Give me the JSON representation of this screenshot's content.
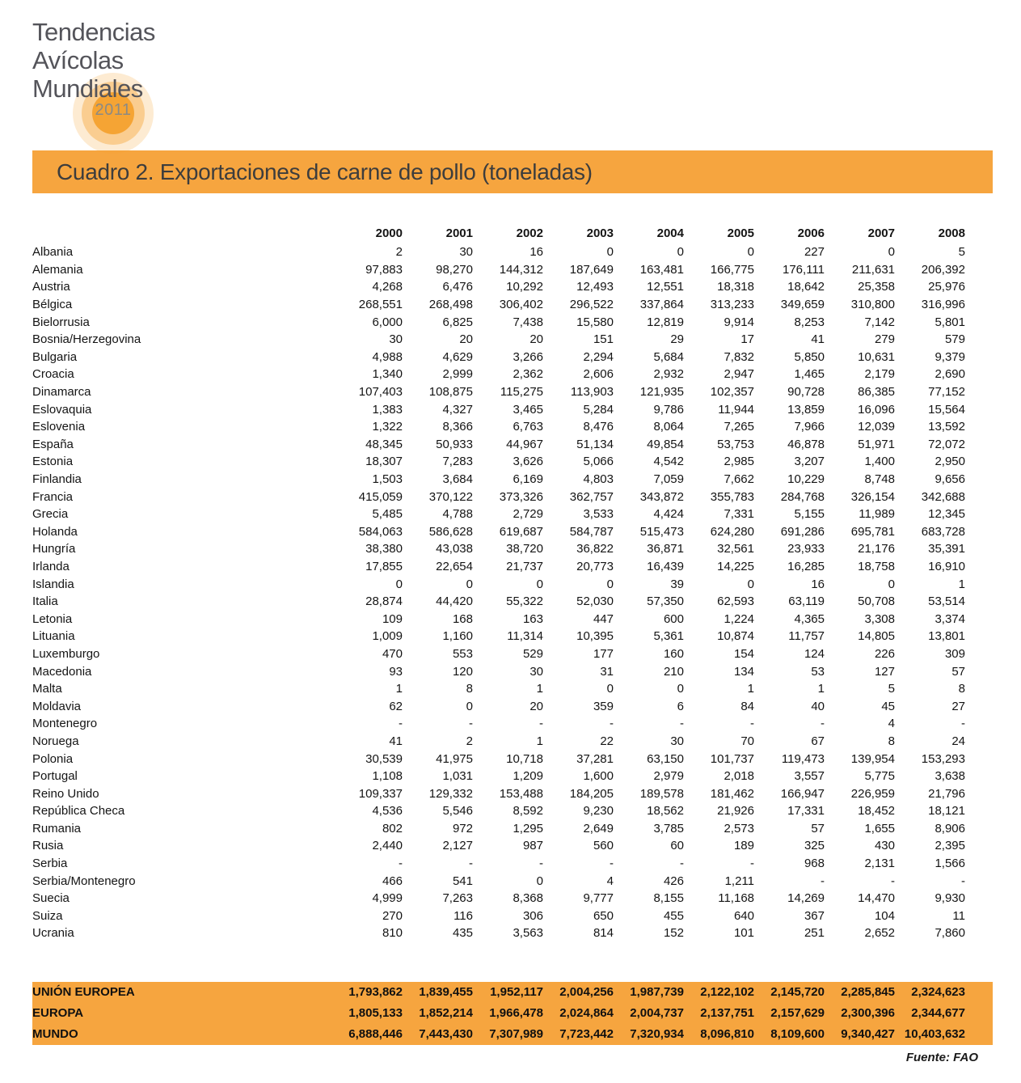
{
  "logo": {
    "lines": [
      "Tendencias",
      "Avícolas",
      "Mundiales"
    ],
    "badge_year": "2011"
  },
  "header": {
    "title": "Cuadro 2. Exportaciones de carne de pollo (toneladas)"
  },
  "footer": {
    "source": "Fuente: FAO"
  },
  "colors": {
    "accent_orange": "#F6A53F",
    "badge_inner_orange": "#F5A434",
    "logo_text_gray": "#54545A",
    "title_text_gray": "#3D3D3D"
  },
  "chart_data": {
    "type": "table",
    "title": "Cuadro 2. Exportaciones de carne de pollo (toneladas)",
    "unit": "toneladas",
    "columns": [
      "2000",
      "2001",
      "2002",
      "2003",
      "2004",
      "2005",
      "2006",
      "2007",
      "2008"
    ],
    "rows": [
      {
        "label": "Albania",
        "values": [
          "2",
          "30",
          "16",
          "0",
          "0",
          "0",
          "227",
          "0",
          "5"
        ]
      },
      {
        "label": "Alemania",
        "values": [
          "97,883",
          "98,270",
          "144,312",
          "187,649",
          "163,481",
          "166,775",
          "176,111",
          "211,631",
          "206,392"
        ]
      },
      {
        "label": "Austria",
        "values": [
          "4,268",
          "6,476",
          "10,292",
          "12,493",
          "12,551",
          "18,318",
          "18,642",
          "25,358",
          "25,976"
        ]
      },
      {
        "label": "Bélgica",
        "values": [
          "268,551",
          "268,498",
          "306,402",
          "296,522",
          "337,864",
          "313,233",
          "349,659",
          "310,800",
          "316,996"
        ]
      },
      {
        "label": "Bielorrusia",
        "values": [
          "6,000",
          "6,825",
          "7,438",
          "15,580",
          "12,819",
          "9,914",
          "8,253",
          "7,142",
          "5,801"
        ]
      },
      {
        "label": "Bosnia/Herzegovina",
        "values": [
          "30",
          "20",
          "20",
          "151",
          "29",
          "17",
          "41",
          "279",
          "579"
        ]
      },
      {
        "label": "Bulgaria",
        "values": [
          "4,988",
          "4,629",
          "3,266",
          "2,294",
          "5,684",
          "7,832",
          "5,850",
          "10,631",
          "9,379"
        ]
      },
      {
        "label": "Croacia",
        "values": [
          "1,340",
          "2,999",
          "2,362",
          "2,606",
          "2,932",
          "2,947",
          "1,465",
          "2,179",
          "2,690"
        ]
      },
      {
        "label": "Dinamarca",
        "values": [
          "107,403",
          "108,875",
          "115,275",
          "113,903",
          "121,935",
          "102,357",
          "90,728",
          "86,385",
          "77,152"
        ]
      },
      {
        "label": "Eslovaquia",
        "values": [
          "1,383",
          "4,327",
          "3,465",
          "5,284",
          "9,786",
          "11,944",
          "13,859",
          "16,096",
          "15,564"
        ]
      },
      {
        "label": "Eslovenia",
        "values": [
          "1,322",
          "8,366",
          "6,763",
          "8,476",
          "8,064",
          "7,265",
          "7,966",
          "12,039",
          "13,592"
        ]
      },
      {
        "label": "España",
        "values": [
          "48,345",
          "50,933",
          "44,967",
          "51,134",
          "49,854",
          "53,753",
          "46,878",
          "51,971",
          "72,072"
        ]
      },
      {
        "label": "Estonia",
        "values": [
          "18,307",
          "7,283",
          "3,626",
          "5,066",
          "4,542",
          "2,985",
          "3,207",
          "1,400",
          "2,950"
        ]
      },
      {
        "label": "Finlandia",
        "values": [
          "1,503",
          "3,684",
          "6,169",
          "4,803",
          "7,059",
          "7,662",
          "10,229",
          "8,748",
          "9,656"
        ]
      },
      {
        "label": "Francia",
        "values": [
          "415,059",
          "370,122",
          "373,326",
          "362,757",
          "343,872",
          "355,783",
          "284,768",
          "326,154",
          "342,688"
        ]
      },
      {
        "label": "Grecia",
        "values": [
          "5,485",
          "4,788",
          "2,729",
          "3,533",
          "4,424",
          "7,331",
          "5,155",
          "11,989",
          "12,345"
        ]
      },
      {
        "label": "Holanda",
        "values": [
          "584,063",
          "586,628",
          "619,687",
          "584,787",
          "515,473",
          "624,280",
          "691,286",
          "695,781",
          "683,728"
        ]
      },
      {
        "label": "Hungría",
        "values": [
          "38,380",
          "43,038",
          "38,720",
          "36,822",
          "36,871",
          "32,561",
          "23,933",
          "21,176",
          "35,391"
        ]
      },
      {
        "label": "Irlanda",
        "values": [
          "17,855",
          "22,654",
          "21,737",
          "20,773",
          "16,439",
          "14,225",
          "16,285",
          "18,758",
          "16,910"
        ]
      },
      {
        "label": "Islandia",
        "values": [
          "0",
          "0",
          "0",
          "0",
          "39",
          "0",
          "16",
          "0",
          "1"
        ]
      },
      {
        "label": "Italia",
        "values": [
          "28,874",
          "44,420",
          "55,322",
          "52,030",
          "57,350",
          "62,593",
          "63,119",
          "50,708",
          "53,514"
        ]
      },
      {
        "label": "Letonia",
        "values": [
          "109",
          "168",
          "163",
          "447",
          "600",
          "1,224",
          "4,365",
          "3,308",
          "3,374"
        ]
      },
      {
        "label": "Lituania",
        "values": [
          "1,009",
          "1,160",
          "11,314",
          "10,395",
          "5,361",
          "10,874",
          "11,757",
          "14,805",
          "13,801"
        ]
      },
      {
        "label": "Luxemburgo",
        "values": [
          "470",
          "553",
          "529",
          "177",
          "160",
          "154",
          "124",
          "226",
          "309"
        ]
      },
      {
        "label": "Macedonia",
        "values": [
          "93",
          "120",
          "30",
          "31",
          "210",
          "134",
          "53",
          "127",
          "57"
        ]
      },
      {
        "label": "Malta",
        "values": [
          "1",
          "8",
          "1",
          "0",
          "0",
          "1",
          "1",
          "5",
          "8"
        ]
      },
      {
        "label": "Moldavia",
        "values": [
          "62",
          "0",
          "20",
          "359",
          "6",
          "84",
          "40",
          "45",
          "27"
        ]
      },
      {
        "label": "Montenegro",
        "values": [
          "-",
          "-",
          "-",
          "-",
          "-",
          "-",
          "-",
          "4",
          "-"
        ]
      },
      {
        "label": "Noruega",
        "values": [
          "41",
          "2",
          "1",
          "22",
          "30",
          "70",
          "67",
          "8",
          "24"
        ]
      },
      {
        "label": "Polonia",
        "values": [
          "30,539",
          "41,975",
          "10,718",
          "37,281",
          "63,150",
          "101,737",
          "119,473",
          "139,954",
          "153,293"
        ]
      },
      {
        "label": "Portugal",
        "values": [
          "1,108",
          "1,031",
          "1,209",
          "1,600",
          "2,979",
          "2,018",
          "3,557",
          "5,775",
          "3,638"
        ]
      },
      {
        "label": "Reino Unido",
        "values": [
          "109,337",
          "129,332",
          "153,488",
          "184,205",
          "189,578",
          "181,462",
          "166,947",
          "226,959",
          "21,796"
        ]
      },
      {
        "label": "República Checa",
        "values": [
          "4,536",
          "5,546",
          "8,592",
          "9,230",
          "18,562",
          "21,926",
          "17,331",
          "18,452",
          "18,121"
        ]
      },
      {
        "label": "Rumania",
        "values": [
          "802",
          "972",
          "1,295",
          "2,649",
          "3,785",
          "2,573",
          "57",
          "1,655",
          "8,906"
        ]
      },
      {
        "label": "Rusia",
        "values": [
          "2,440",
          "2,127",
          "987",
          "560",
          "60",
          "189",
          "325",
          "430",
          "2,395"
        ]
      },
      {
        "label": "Serbia",
        "values": [
          "-",
          "-",
          "-",
          "-",
          "-",
          "-",
          "968",
          "2,131",
          "1,566"
        ]
      },
      {
        "label": "Serbia/Montenegro",
        "values": [
          "466",
          "541",
          "0",
          "4",
          "426",
          "1,211",
          "-",
          "-",
          "-"
        ]
      },
      {
        "label": "Suecia",
        "values": [
          "4,999",
          "7,263",
          "8,368",
          "9,777",
          "8,155",
          "11,168",
          "14,269",
          "14,470",
          "9,930"
        ]
      },
      {
        "label": "Suiza",
        "values": [
          "270",
          "116",
          "306",
          "650",
          "455",
          "640",
          "367",
          "104",
          "11"
        ]
      },
      {
        "label": "Ucrania",
        "values": [
          "810",
          "435",
          "3,563",
          "814",
          "152",
          "101",
          "251",
          "2,652",
          "7,860"
        ]
      }
    ],
    "totals": [
      {
        "label": "UNIÓN EUROPEA",
        "values": [
          "1,793,862",
          "1,839,455",
          "1,952,117",
          "2,004,256",
          "1,987,739",
          "2,122,102",
          "2,145,720",
          "2,285,845",
          "2,324,623"
        ]
      },
      {
        "label": "EUROPA",
        "values": [
          "1,805,133",
          "1,852,214",
          "1,966,478",
          "2,024,864",
          "2,004,737",
          "2,137,751",
          "2,157,629",
          "2,300,396",
          "2,344,677"
        ]
      },
      {
        "label": "MUNDO",
        "values": [
          "6,888,446",
          "7,443,430",
          "7,307,989",
          "7,723,442",
          "7,320,934",
          "8,096,810",
          "8,109,600",
          "9,340,427",
          "10,403,632"
        ]
      }
    ]
  }
}
